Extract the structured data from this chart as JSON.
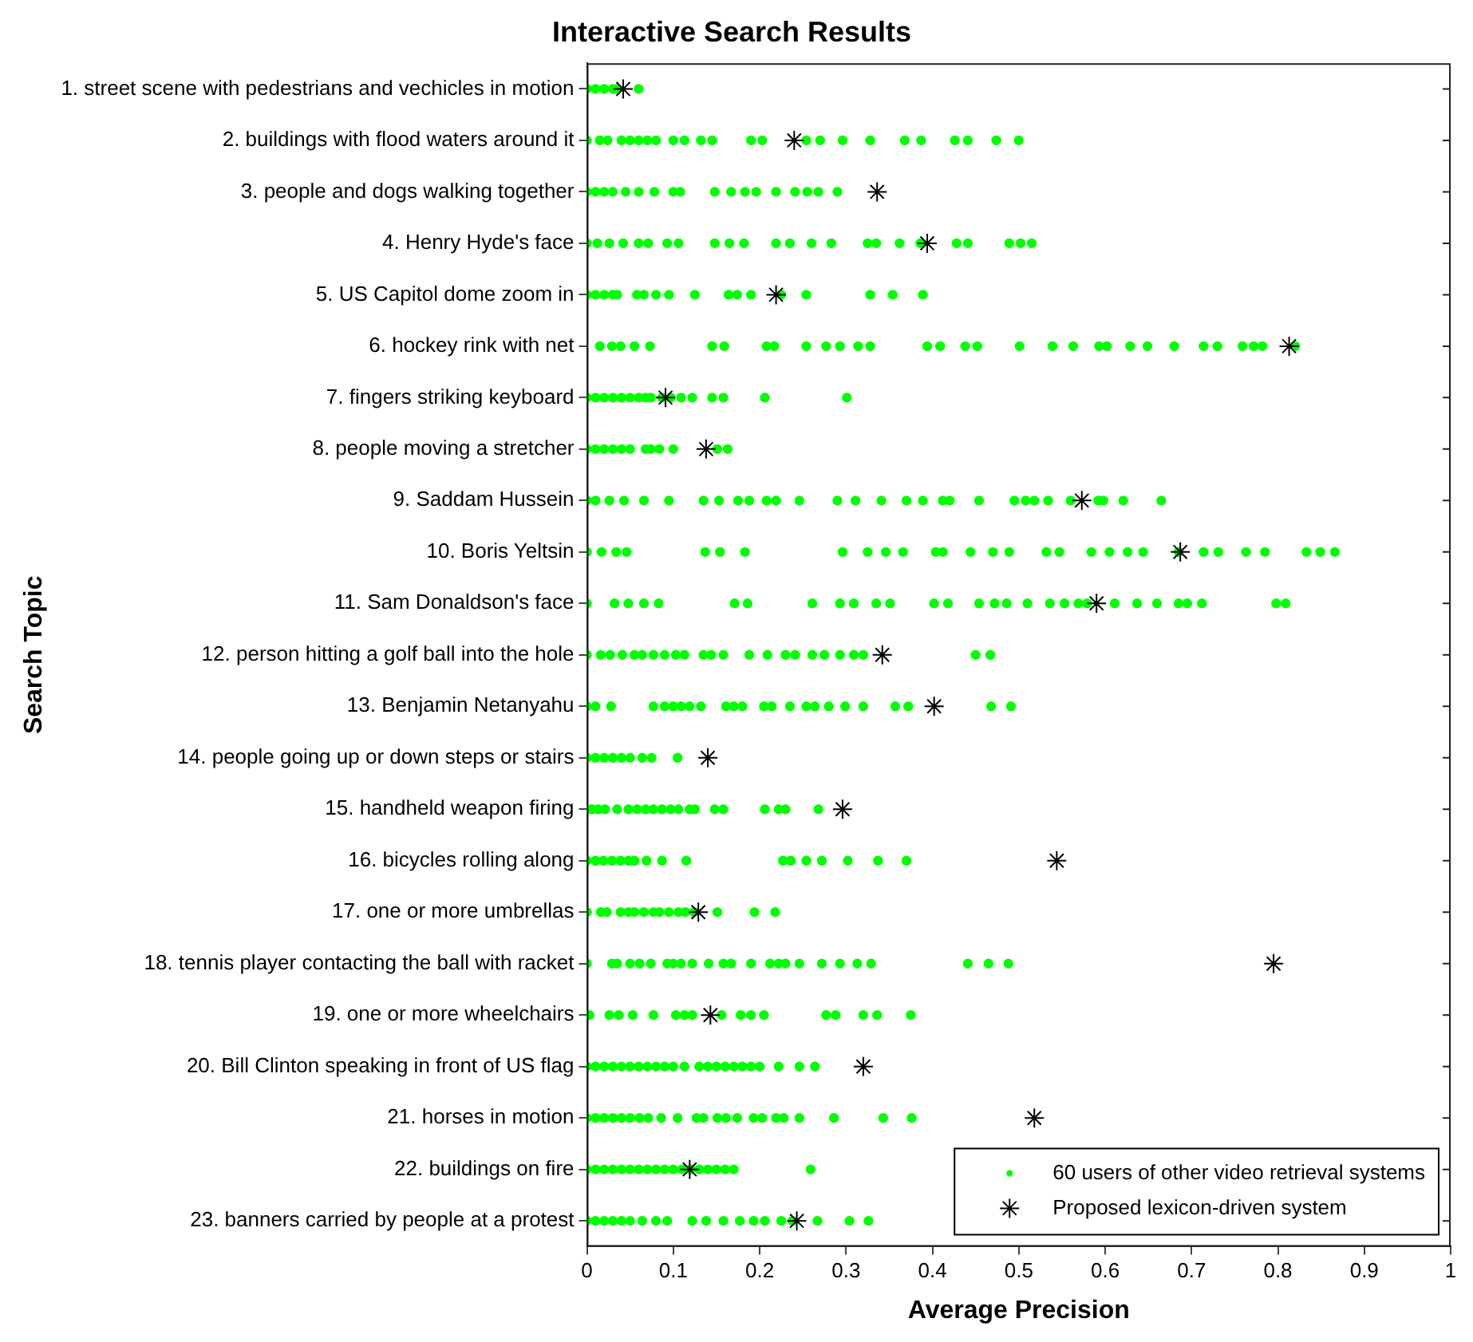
{
  "chart_data": {
    "type": "scatter",
    "orientation": "horizontal",
    "title": "Interactive Search Results",
    "xlabel": "Average Precision",
    "ylabel": "Search Topic",
    "categories": [
      "1. street scene with pedestrians and vechicles in motion",
      "2. buildings with flood waters around it",
      "3. people and dogs walking together",
      "4. Henry Hyde's face",
      "5. US Capitol dome zoom in",
      "6. hockey rink with net",
      "7. fingers striking keyboard",
      "8. people moving a stretcher",
      "9. Saddam Hussein",
      "10. Boris Yeltsin",
      "11. Sam Donaldson's face",
      "12. person hitting a golf ball into the hole",
      "13. Benjamin Netanyahu",
      "14. people going up or down steps or stairs",
      "15. handheld weapon firing",
      "16. bicycles rolling along",
      "17. one or more umbrellas",
      "18. tennis player contacting the ball with racket",
      "19. one or more wheelchairs",
      "20. Bill Clinton speaking in front of US flag",
      "21. horses in motion",
      "22. buildings on fire",
      "23. banners carried by people at a protest"
    ],
    "xlim": [
      0,
      1
    ],
    "xticks": [
      0,
      0.1,
      0.2,
      0.3,
      0.4,
      0.5,
      0.6,
      0.7,
      0.8,
      0.9,
      1
    ],
    "legend": "bottom right",
    "series": [
      {
        "name": "60 users of other video retrieval systems",
        "color": "#00ff00",
        "marker": "circle",
        "x": [
          "1. street scene with pedestrians and vechicles in motion",
          "1. street scene with pedestrians and vechicles in motion",
          "1. street scene with pedestrians and vechicles in motion",
          "1. street scene with pedestrians and vechicles in motion",
          "1. street scene with pedestrians and vechicles in motion",
          "1. street scene with pedestrians and vechicles in motion",
          "2. buildings with flood waters around it",
          "2. buildings with flood waters around it",
          "2. buildings with flood waters around it",
          "2. buildings with flood waters around it",
          "2. buildings with flood waters around it",
          "2. buildings with flood waters around it",
          "2. buildings with flood waters around it",
          "2. buildings with flood waters around it",
          "2. buildings with flood waters around it",
          "2. buildings with flood waters around it",
          "2. buildings with flood waters around it",
          "2. buildings with flood waters around it",
          "2. buildings with flood waters around it",
          "2. buildings with flood waters around it",
          "2. buildings with flood waters around it",
          "2. buildings with flood waters around it",
          "2. buildings with flood waters around it",
          "2. buildings with flood waters around it",
          "2. buildings with flood waters around it",
          "2. buildings with flood waters around it",
          "2. buildings with flood waters around it",
          "2. buildings with flood waters around it",
          "2. buildings with flood waters around it",
          "2. buildings with flood waters around it",
          "3. people and dogs walking together",
          "3. people and dogs walking together",
          "3. people and dogs walking together",
          "3. people and dogs walking together",
          "3. people and dogs walking together",
          "3. people and dogs walking together",
          "3. people and dogs walking together",
          "3. people and dogs walking together",
          "3. people and dogs walking together",
          "3. people and dogs walking together",
          "3. people and dogs walking together",
          "3. people and dogs walking together",
          "3. people and dogs walking together",
          "3. people and dogs walking together",
          "3. people and dogs walking together",
          "3. people and dogs walking together",
          "3. people and dogs walking together",
          "3. people and dogs walking together",
          "4. Henry Hyde's face",
          "4. Henry Hyde's face",
          "4. Henry Hyde's face",
          "4. Henry Hyde's face",
          "4. Henry Hyde's face",
          "4. Henry Hyde's face",
          "4. Henry Hyde's face",
          "4. Henry Hyde's face",
          "4. Henry Hyde's face",
          "4. Henry Hyde's face",
          "4. Henry Hyde's face",
          "4. Henry Hyde's face",
          "4. Henry Hyde's face",
          "4. Henry Hyde's face",
          "4. Henry Hyde's face",
          "4. Henry Hyde's face",
          "4. Henry Hyde's face",
          "4. Henry Hyde's face",
          "4. Henry Hyde's face",
          "4. Henry Hyde's face",
          "4. Henry Hyde's face",
          "4. Henry Hyde's face",
          "4. Henry Hyde's face",
          "4. Henry Hyde's face",
          "5. US Capitol dome zoom in",
          "5. US Capitol dome zoom in",
          "5. US Capitol dome zoom in",
          "5. US Capitol dome zoom in",
          "5. US Capitol dome zoom in",
          "5. US Capitol dome zoom in",
          "5. US Capitol dome zoom in",
          "5. US Capitol dome zoom in",
          "5. US Capitol dome zoom in",
          "5. US Capitol dome zoom in",
          "5. US Capitol dome zoom in",
          "5. US Capitol dome zoom in",
          "5. US Capitol dome zoom in",
          "5. US Capitol dome zoom in",
          "5. US Capitol dome zoom in",
          "5. US Capitol dome zoom in",
          "5. US Capitol dome zoom in",
          "5. US Capitol dome zoom in",
          "6. hockey rink with net",
          "6. hockey rink with net",
          "6. hockey rink with net",
          "6. hockey rink with net",
          "6. hockey rink with net",
          "6. hockey rink with net",
          "6. hockey rink with net",
          "6. hockey rink with net",
          "6. hockey rink with net",
          "6. hockey rink with net",
          "6. hockey rink with net",
          "6. hockey rink with net",
          "6. hockey rink with net",
          "6. hockey rink with net",
          "6. hockey rink with net",
          "6. hockey rink with net",
          "6. hockey rink with net",
          "6. hockey rink with net",
          "6. hockey rink with net",
          "6. hockey rink with net",
          "6. hockey rink with net",
          "6. hockey rink with net",
          "6. hockey rink with net",
          "6. hockey rink with net",
          "6. hockey rink with net",
          "6. hockey rink with net",
          "6. hockey rink with net",
          "6. hockey rink with net",
          "6. hockey rink with net",
          "6. hockey rink with net",
          "6. hockey rink with net",
          "6. hockey rink with net",
          "7. fingers striking keyboard",
          "7. fingers striking keyboard",
          "7. fingers striking keyboard",
          "7. fingers striking keyboard",
          "7. fingers striking keyboard",
          "7. fingers striking keyboard",
          "7. fingers striking keyboard",
          "7. fingers striking keyboard",
          "7. fingers striking keyboard",
          "7. fingers striking keyboard",
          "7. fingers striking keyboard",
          "7. fingers striking keyboard",
          "7. fingers striking keyboard",
          "7. fingers striking keyboard",
          "7. fingers striking keyboard",
          "7. fingers striking keyboard",
          "7. fingers striking keyboard",
          "8. people moving a stretcher",
          "8. people moving a stretcher",
          "8. people moving a stretcher",
          "8. people moving a stretcher",
          "8. people moving a stretcher",
          "8. people moving a stretcher",
          "8. people moving a stretcher",
          "8. people moving a stretcher",
          "8. people moving a stretcher",
          "8. people moving a stretcher",
          "8. people moving a stretcher",
          "8. people moving a stretcher",
          "9. Saddam Hussein",
          "9. Saddam Hussein",
          "9. Saddam Hussein",
          "9. Saddam Hussein",
          "9. Saddam Hussein",
          "9. Saddam Hussein",
          "9. Saddam Hussein",
          "9. Saddam Hussein",
          "9. Saddam Hussein",
          "9. Saddam Hussein",
          "9. Saddam Hussein",
          "9. Saddam Hussein",
          "9. Saddam Hussein",
          "9. Saddam Hussein",
          "9. Saddam Hussein",
          "9. Saddam Hussein",
          "9. Saddam Hussein",
          "9. Saddam Hussein",
          "9. Saddam Hussein",
          "9. Saddam Hussein",
          "9. Saddam Hussein",
          "9. Saddam Hussein",
          "9. Saddam Hussein",
          "9. Saddam Hussein",
          "9. Saddam Hussein",
          "9. Saddam Hussein",
          "9. Saddam Hussein",
          "9. Saddam Hussein",
          "9. Saddam Hussein",
          "9. Saddam Hussein",
          "10. Boris Yeltsin",
          "10. Boris Yeltsin",
          "10. Boris Yeltsin",
          "10. Boris Yeltsin",
          "10. Boris Yeltsin",
          "10. Boris Yeltsin",
          "10. Boris Yeltsin",
          "10. Boris Yeltsin",
          "10. Boris Yeltsin",
          "10. Boris Yeltsin",
          "10. Boris Yeltsin",
          "10. Boris Yeltsin",
          "10. Boris Yeltsin",
          "10. Boris Yeltsin",
          "10. Boris Yeltsin",
          "10. Boris Yeltsin",
          "10. Boris Yeltsin",
          "10. Boris Yeltsin",
          "10. Boris Yeltsin",
          "10. Boris Yeltsin",
          "10. Boris Yeltsin",
          "10. Boris Yeltsin",
          "10. Boris Yeltsin",
          "10. Boris Yeltsin",
          "10. Boris Yeltsin",
          "10. Boris Yeltsin",
          "10. Boris Yeltsin",
          "10. Boris Yeltsin",
          "10. Boris Yeltsin",
          "10. Boris Yeltsin",
          "11. Sam Donaldson's face",
          "11. Sam Donaldson's face",
          "11. Sam Donaldson's face",
          "11. Sam Donaldson's face",
          "11. Sam Donaldson's face",
          "11. Sam Donaldson's face",
          "11. Sam Donaldson's face",
          "11. Sam Donaldson's face",
          "11. Sam Donaldson's face",
          "11. Sam Donaldson's face",
          "11. Sam Donaldson's face",
          "11. Sam Donaldson's face",
          "11. Sam Donaldson's face",
          "11. Sam Donaldson's face",
          "11. Sam Donaldson's face",
          "11. Sam Donaldson's face",
          "11. Sam Donaldson's face",
          "11. Sam Donaldson's face",
          "11. Sam Donaldson's face",
          "11. Sam Donaldson's face",
          "11. Sam Donaldson's face",
          "11. Sam Donaldson's face",
          "11. Sam Donaldson's face",
          "11. Sam Donaldson's face",
          "11. Sam Donaldson's face",
          "11. Sam Donaldson's face",
          "11. Sam Donaldson's face",
          "11. Sam Donaldson's face",
          "11. Sam Donaldson's face",
          "11. Sam Donaldson's face",
          "12. person hitting a golf ball into the hole",
          "12. person hitting a golf ball into the hole",
          "12. person hitting a golf ball into the hole",
          "12. person hitting a golf ball into the hole",
          "12. person hitting a golf ball into the hole",
          "12. person hitting a golf ball into the hole",
          "12. person hitting a golf ball into the hole",
          "12. person hitting a golf ball into the hole",
          "12. person hitting a golf ball into the hole",
          "12. person hitting a golf ball into the hole",
          "12. person hitting a golf ball into the hole",
          "12. person hitting a golf ball into the hole",
          "12. person hitting a golf ball into the hole",
          "12. person hitting a golf ball into the hole",
          "12. person hitting a golf ball into the hole",
          "12. person hitting a golf ball into the hole",
          "12. person hitting a golf ball into the hole",
          "12. person hitting a golf ball into the hole",
          "12. person hitting a golf ball into the hole",
          "12. person hitting a golf ball into the hole",
          "12. person hitting a golf ball into the hole",
          "12. person hitting a golf ball into the hole",
          "12. person hitting a golf ball into the hole",
          "12. person hitting a golf ball into the hole",
          "13. Benjamin Netanyahu",
          "13. Benjamin Netanyahu",
          "13. Benjamin Netanyahu",
          "13. Benjamin Netanyahu",
          "13. Benjamin Netanyahu",
          "13. Benjamin Netanyahu",
          "13. Benjamin Netanyahu",
          "13. Benjamin Netanyahu",
          "13. Benjamin Netanyahu",
          "13. Benjamin Netanyahu",
          "13. Benjamin Netanyahu",
          "13. Benjamin Netanyahu",
          "13. Benjamin Netanyahu",
          "13. Benjamin Netanyahu",
          "13. Benjamin Netanyahu",
          "13. Benjamin Netanyahu",
          "13. Benjamin Netanyahu",
          "13. Benjamin Netanyahu",
          "13. Benjamin Netanyahu",
          "13. Benjamin Netanyahu",
          "13. Benjamin Netanyahu",
          "13. Benjamin Netanyahu",
          "13. Benjamin Netanyahu",
          "13. Benjamin Netanyahu",
          "14. people going up or down steps or stairs",
          "14. people going up or down steps or stairs",
          "14. people going up or down steps or stairs",
          "14. people going up or down steps or stairs",
          "14. people going up or down steps or stairs",
          "14. people going up or down steps or stairs",
          "14. people going up or down steps or stairs",
          "14. people going up or down steps or stairs",
          "14. people going up or down steps or stairs",
          "15. handheld weapon firing",
          "15. handheld weapon firing",
          "15. handheld weapon firing",
          "15. handheld weapon firing",
          "15. handheld weapon firing",
          "15. handheld weapon firing",
          "15. handheld weapon firing",
          "15. handheld weapon firing",
          "15. handheld weapon firing",
          "15. handheld weapon firing",
          "15. handheld weapon firing",
          "15. handheld weapon firing",
          "15. handheld weapon firing",
          "15. handheld weapon firing",
          "15. handheld weapon firing",
          "15. handheld weapon firing",
          "15. handheld weapon firing",
          "15. handheld weapon firing",
          "15. handheld weapon firing",
          "15. handheld weapon firing",
          "16. bicycles rolling along",
          "16. bicycles rolling along",
          "16. bicycles rolling along",
          "16. bicycles rolling along",
          "16. bicycles rolling along",
          "16. bicycles rolling along",
          "16. bicycles rolling along",
          "16. bicycles rolling along",
          "16. bicycles rolling along",
          "16. bicycles rolling along",
          "16. bicycles rolling along",
          "16. bicycles rolling along",
          "16. bicycles rolling along",
          "16. bicycles rolling along",
          "16. bicycles rolling along",
          "16. bicycles rolling along",
          "16. bicycles rolling along",
          "17. one or more umbrellas",
          "17. one or more umbrellas",
          "17. one or more umbrellas",
          "17. one or more umbrellas",
          "17. one or more umbrellas",
          "17. one or more umbrellas",
          "17. one or more umbrellas",
          "17. one or more umbrellas",
          "17. one or more umbrellas",
          "17. one or more umbrellas",
          "17. one or more umbrellas",
          "17. one or more umbrellas",
          "17. one or more umbrellas",
          "17. one or more umbrellas",
          "17. one or more umbrellas",
          "17. one or more umbrellas",
          "18. tennis player contacting the ball with racket",
          "18. tennis player contacting the ball with racket",
          "18. tennis player contacting the ball with racket",
          "18. tennis player contacting the ball with racket",
          "18. tennis player contacting the ball with racket",
          "18. tennis player contacting the ball with racket",
          "18. tennis player contacting the ball with racket",
          "18. tennis player contacting the ball with racket",
          "18. tennis player contacting the ball with racket",
          "18. tennis player contacting the ball with racket",
          "18. tennis player contacting the ball with racket",
          "18. tennis player contacting the ball with racket",
          "18. tennis player contacting the ball with racket",
          "18. tennis player contacting the ball with racket",
          "18. tennis player contacting the ball with racket",
          "18. tennis player contacting the ball with racket",
          "18. tennis player contacting the ball with racket",
          "18. tennis player contacting the ball with racket",
          "18. tennis player contacting the ball with racket",
          "18. tennis player contacting the ball with racket",
          "18. tennis player contacting the ball with racket",
          "18. tennis player contacting the ball with racket",
          "18. tennis player contacting the ball with racket",
          "18. tennis player contacting the ball with racket",
          "18. tennis player contacting the ball with racket",
          "19. one or more wheelchairs",
          "19. one or more wheelchairs",
          "19. one or more wheelchairs",
          "19. one or more wheelchairs",
          "19. one or more wheelchairs",
          "19. one or more wheelchairs",
          "19. one or more wheelchairs",
          "19. one or more wheelchairs",
          "19. one or more wheelchairs",
          "19. one or more wheelchairs",
          "19. one or more wheelchairs",
          "19. one or more wheelchairs",
          "19. one or more wheelchairs",
          "19. one or more wheelchairs",
          "19. one or more wheelchairs",
          "19. one or more wheelchairs",
          "19. one or more wheelchairs",
          "19. one or more wheelchairs",
          "20. Bill Clinton speaking in front of US flag",
          "20. Bill Clinton speaking in front of US flag",
          "20. Bill Clinton speaking in front of US flag",
          "20. Bill Clinton speaking in front of US flag",
          "20. Bill Clinton speaking in front of US flag",
          "20. Bill Clinton speaking in front of US flag",
          "20. Bill Clinton speaking in front of US flag",
          "20. Bill Clinton speaking in front of US flag",
          "20. Bill Clinton speaking in front of US flag",
          "20. Bill Clinton speaking in front of US flag",
          "20. Bill Clinton speaking in front of US flag",
          "20. Bill Clinton speaking in front of US flag",
          "20. Bill Clinton speaking in front of US flag",
          "20. Bill Clinton speaking in front of US flag",
          "20. Bill Clinton speaking in front of US flag",
          "20. Bill Clinton speaking in front of US flag",
          "20. Bill Clinton speaking in front of US flag",
          "20. Bill Clinton speaking in front of US flag",
          "20. Bill Clinton speaking in front of US flag",
          "20. Bill Clinton speaking in front of US flag",
          "20. Bill Clinton speaking in front of US flag",
          "20. Bill Clinton speaking in front of US flag",
          "20. Bill Clinton speaking in front of US flag",
          "21. horses in motion",
          "21. horses in motion",
          "21. horses in motion",
          "21. horses in motion",
          "21. horses in motion",
          "21. horses in motion",
          "21. horses in motion",
          "21. horses in motion",
          "21. horses in motion",
          "21. horses in motion",
          "21. horses in motion",
          "21. horses in motion",
          "21. horses in motion",
          "21. horses in motion",
          "21. horses in motion",
          "21. horses in motion",
          "21. horses in motion",
          "21. horses in motion",
          "21. horses in motion",
          "21. horses in motion",
          "21. horses in motion",
          "21. horses in motion",
          "21. horses in motion",
          "22. buildings on fire",
          "22. buildings on fire",
          "22. buildings on fire",
          "22. buildings on fire",
          "22. buildings on fire",
          "22. buildings on fire",
          "22. buildings on fire",
          "22. buildings on fire",
          "22. buildings on fire",
          "22. buildings on fire",
          "22. buildings on fire",
          "22. buildings on fire",
          "22. buildings on fire",
          "22. buildings on fire",
          "22. buildings on fire",
          "22. buildings on fire",
          "22. buildings on fire",
          "22. buildings on fire",
          "22. buildings on fire",
          "23. banners carried by people at a protest",
          "23. banners carried by people at a protest",
          "23. banners carried by people at a protest",
          "23. banners carried by people at a protest",
          "23. banners carried by people at a protest",
          "23. banners carried by people at a protest",
          "23. banners carried by people at a protest",
          "23. banners carried by people at a protest",
          "23. banners carried by people at a protest",
          "23. banners carried by people at a protest",
          "23. banners carried by people at a protest",
          "23. banners carried by people at a protest",
          "23. banners carried by people at a protest",
          "23. banners carried by people at a protest",
          "23. banners carried by people at a protest",
          "23. banners carried by people at a protest",
          "23. banners carried by people at a protest",
          "23. banners carried by people at a protest",
          "23. banners carried by people at a protest",
          "23. banners carried by people at a protest"
        ],
        "values": [
          0,
          0.01,
          0.02,
          0.03,
          0.035,
          0.06,
          0,
          0.015,
          0.024,
          0.04,
          0.05,
          0.06,
          0.07,
          0.08,
          0.1,
          0.113,
          0.132,
          0.145,
          0.19,
          0.203,
          0.254,
          0.27,
          0.296,
          0.328,
          0.368,
          0.387,
          0.426,
          0.441,
          0.474,
          0.5,
          0,
          0.01,
          0.02,
          0.03,
          0.045,
          0.06,
          0.078,
          0.1,
          0.108,
          0.148,
          0.167,
          0.183,
          0.196,
          0.219,
          0.241,
          0.255,
          0.268,
          0.29,
          0,
          0.012,
          0.026,
          0.042,
          0.06,
          0.071,
          0.093,
          0.106,
          0.148,
          0.165,
          0.182,
          0.219,
          0.235,
          0.26,
          0.283,
          0.325,
          0.335,
          0.362,
          0.386,
          0.428,
          0.441,
          0.489,
          0.502,
          0.515,
          0,
          0.01,
          0.02,
          0.03,
          0.035,
          0.058,
          0.066,
          0.08,
          0.095,
          0.125,
          0.164,
          0.174,
          0.19,
          0.225,
          0.254,
          0.328,
          0.354,
          0.389,
          0.015,
          0.029,
          0.039,
          0.055,
          0.073,
          0.145,
          0.159,
          0.208,
          0.217,
          0.254,
          0.277,
          0.293,
          0.314,
          0.328,
          0.394,
          0.409,
          0.438,
          0.452,
          0.501,
          0.539,
          0.563,
          0.593,
          0.602,
          0.629,
          0.649,
          0.68,
          0.714,
          0.73,
          0.759,
          0.772,
          0.782,
          0.82,
          0,
          0.01,
          0.02,
          0.03,
          0.04,
          0.05,
          0.06,
          0.068,
          0.074,
          0.087,
          0.097,
          0.109,
          0.122,
          0.145,
          0.158,
          0.206,
          0.301,
          0,
          0.01,
          0.02,
          0.03,
          0.04,
          0.05,
          0.068,
          0.074,
          0.084,
          0.1,
          0.151,
          0.163,
          0,
          0.01,
          0.026,
          0.043,
          0.066,
          0.095,
          0.135,
          0.153,
          0.175,
          0.188,
          0.208,
          0.219,
          0.246,
          0.29,
          0.311,
          0.341,
          0.37,
          0.389,
          0.412,
          0.42,
          0.454,
          0.495,
          0.508,
          0.518,
          0.534,
          0.56,
          0.592,
          0.598,
          0.621,
          0.665,
          0,
          0.017,
          0.034,
          0.046,
          0.137,
          0.154,
          0.183,
          0.296,
          0.325,
          0.346,
          0.366,
          0.404,
          0.412,
          0.444,
          0.47,
          0.489,
          0.532,
          0.547,
          0.584,
          0.605,
          0.626,
          0.644,
          0.685,
          0.714,
          0.731,
          0.763,
          0.785,
          0.833,
          0.849,
          0.866,
          0,
          0.032,
          0.048,
          0.066,
          0.083,
          0.171,
          0.186,
          0.261,
          0.293,
          0.309,
          0.335,
          0.351,
          0.402,
          0.418,
          0.454,
          0.472,
          0.486,
          0.51,
          0.536,
          0.553,
          0.569,
          0.579,
          0.611,
          0.637,
          0.66,
          0.685,
          0.695,
          0.712,
          0.798,
          0.809,
          0,
          0.016,
          0.027,
          0.041,
          0.055,
          0.064,
          0.077,
          0.09,
          0.103,
          0.113,
          0.135,
          0.144,
          0.158,
          0.188,
          0.209,
          0.23,
          0.241,
          0.261,
          0.275,
          0.293,
          0.309,
          0.32,
          0.45,
          0.467,
          0,
          0.01,
          0.028,
          0.077,
          0.09,
          0.1,
          0.109,
          0.119,
          0.132,
          0.161,
          0.17,
          0.18,
          0.205,
          0.214,
          0.235,
          0.254,
          0.264,
          0.28,
          0.299,
          0.32,
          0.357,
          0.372,
          0.468,
          0.491,
          0,
          0.01,
          0.02,
          0.03,
          0.04,
          0.05,
          0.064,
          0.075,
          0.105,
          0,
          0.006,
          0.013,
          0.021,
          0.035,
          0.048,
          0.058,
          0.068,
          0.077,
          0.087,
          0.097,
          0.106,
          0.119,
          0.125,
          0.148,
          0.158,
          0.206,
          0.222,
          0.23,
          0.268,
          0,
          0.01,
          0.019,
          0.029,
          0.039,
          0.048,
          0.055,
          0.069,
          0.087,
          0.115,
          0.227,
          0.236,
          0.254,
          0.272,
          0.302,
          0.337,
          0.37,
          0,
          0.016,
          0.023,
          0.039,
          0.048,
          0.055,
          0.066,
          0.077,
          0.084,
          0.095,
          0.106,
          0.114,
          0.124,
          0.151,
          0.194,
          0.218,
          0,
          0.029,
          0.035,
          0.05,
          0.061,
          0.074,
          0.093,
          0.1,
          0.109,
          0.122,
          0.141,
          0.158,
          0.167,
          0.19,
          0.212,
          0.222,
          0.23,
          0.246,
          0.272,
          0.293,
          0.313,
          0.329,
          0.441,
          0.465,
          0.488,
          0,
          0.003,
          0.026,
          0.037,
          0.053,
          0.077,
          0.103,
          0.113,
          0.122,
          0.156,
          0.178,
          0.19,
          0.205,
          0.277,
          0.288,
          0.32,
          0.336,
          0.375,
          0,
          0.01,
          0.02,
          0.03,
          0.04,
          0.05,
          0.06,
          0.07,
          0.08,
          0.09,
          0.1,
          0.113,
          0.13,
          0.14,
          0.15,
          0.16,
          0.17,
          0.18,
          0.19,
          0.2,
          0.222,
          0.246,
          0.264,
          0,
          0.01,
          0.02,
          0.03,
          0.04,
          0.05,
          0.061,
          0.071,
          0.086,
          0.105,
          0.127,
          0.135,
          0.151,
          0.161,
          0.174,
          0.193,
          0.203,
          0.219,
          0.228,
          0.246,
          0.286,
          0.343,
          0.376,
          0,
          0.01,
          0.02,
          0.03,
          0.04,
          0.05,
          0.06,
          0.07,
          0.08,
          0.09,
          0.1,
          0.11,
          0.12,
          0.13,
          0.14,
          0.15,
          0.16,
          0.17,
          0.259,
          0,
          0.01,
          0.02,
          0.03,
          0.04,
          0.05,
          0.064,
          0.08,
          0.093,
          0.122,
          0.138,
          0.158,
          0.177,
          0.193,
          0.206,
          0.225,
          0.238,
          0.267,
          0.304,
          0.326
        ]
      },
      {
        "name": "Proposed lexicon-driven system",
        "color": "#000000",
        "marker": "cross",
        "values": [
          0.042,
          0.24,
          0.336,
          0.394,
          0.219,
          0.813,
          0.091,
          0.138,
          0.573,
          0.687,
          0.59,
          0.342,
          0.402,
          0.14,
          0.296,
          0.544,
          0.129,
          0.795,
          0.143,
          0.32,
          0.518,
          0.119,
          0.243
        ]
      }
    ]
  }
}
